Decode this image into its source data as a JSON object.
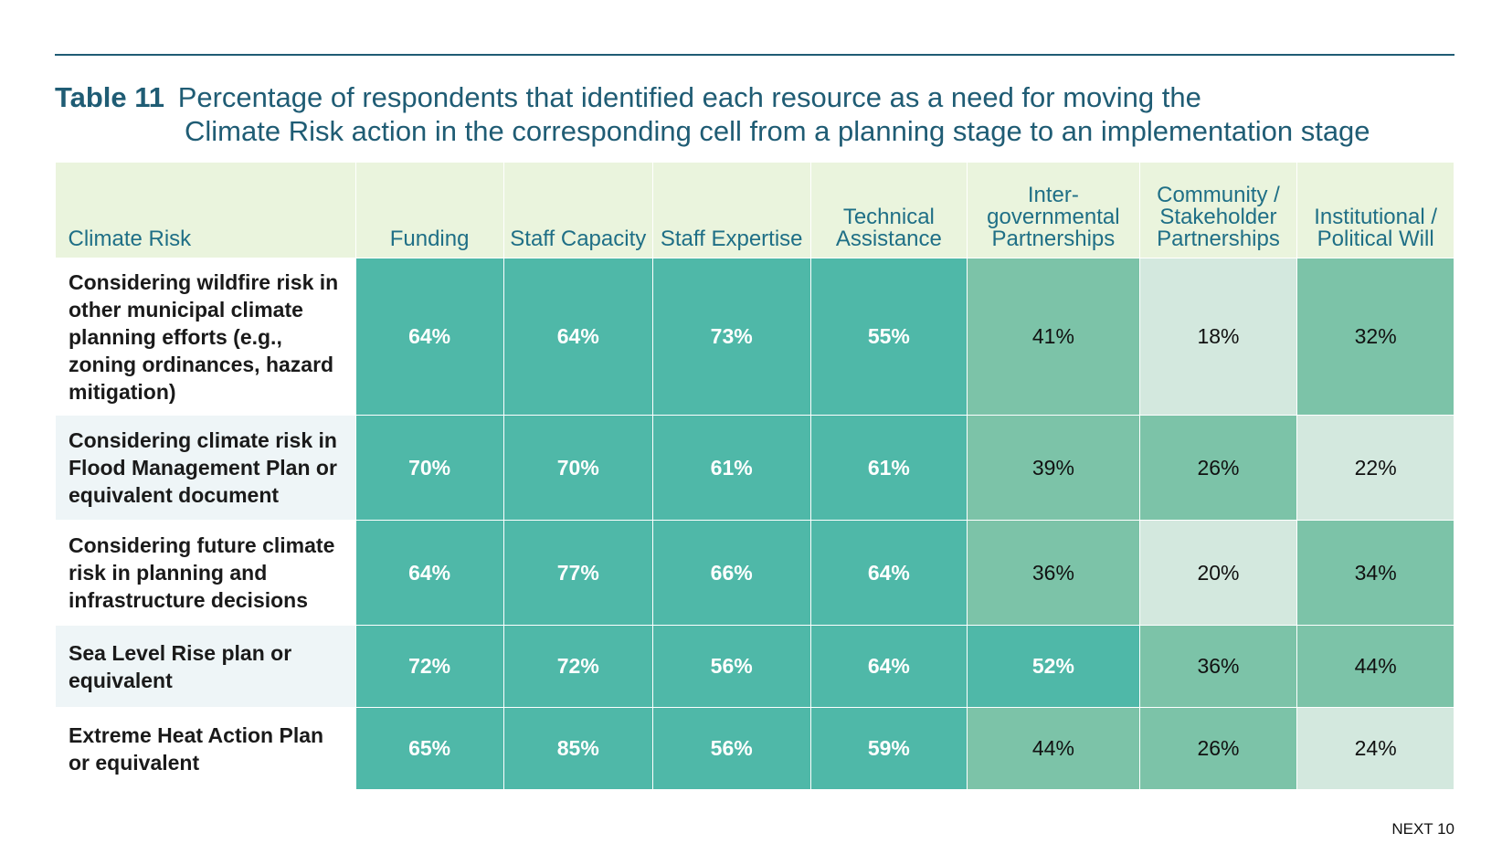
{
  "title": {
    "label": "Table 11",
    "line1": "Percentage of respondents that identified each resource as a need for moving the",
    "line2": "Climate Risk action in the corresponding cell from a planning stage to an implementation stage"
  },
  "colors": {
    "title": "#1f5c74",
    "header_bg": "#eaf4dd",
    "header_text": "#1f6f86",
    "cell_high": "#4fb8a8",
    "cell_mid": "#7cc3a8",
    "cell_low": "#d3e8de",
    "row_alt_bg": "#eef5f7"
  },
  "table": {
    "columns": [
      "Climate Risk",
      "Funding",
      "Staff Capacity",
      "Staff Expertise",
      "Technical Assistance",
      "Inter-governmental Partnerships",
      "Community / Stakeholder Partnerships",
      "Institutional / Political Will"
    ],
    "rows": [
      {
        "label": "Considering wildfire risk in other municipal climate planning efforts (e.g., zoning ordinances, hazard mitigation)",
        "values": [
          "64%",
          "64%",
          "73%",
          "55%",
          "41%",
          "18%",
          "32%"
        ],
        "levels": [
          "high",
          "high",
          "high",
          "high",
          "mid",
          "low",
          "mid"
        ]
      },
      {
        "label": "Considering climate risk in Flood Management Plan or equivalent document",
        "values": [
          "70%",
          "70%",
          "61%",
          "61%",
          "39%",
          "26%",
          "22%"
        ],
        "levels": [
          "high",
          "high",
          "high",
          "high",
          "mid",
          "mid",
          "low"
        ]
      },
      {
        "label": "Considering future climate risk in planning and infrastructure decisions",
        "values": [
          "64%",
          "77%",
          "66%",
          "64%",
          "36%",
          "20%",
          "34%"
        ],
        "levels": [
          "high",
          "high",
          "high",
          "high",
          "mid",
          "low",
          "mid"
        ]
      },
      {
        "label": "Sea Level Rise plan or equivalent",
        "values": [
          "72%",
          "72%",
          "56%",
          "64%",
          "52%",
          "36%",
          "44%"
        ],
        "levels": [
          "high",
          "high",
          "high",
          "high",
          "high",
          "mid",
          "mid"
        ]
      },
      {
        "label": "Extreme Heat Action Plan or equivalent",
        "values": [
          "65%",
          "85%",
          "56%",
          "59%",
          "44%",
          "26%",
          "24%"
        ],
        "levels": [
          "high",
          "high",
          "high",
          "high",
          "mid",
          "mid",
          "low"
        ]
      }
    ]
  },
  "footer": "NEXT 10"
}
